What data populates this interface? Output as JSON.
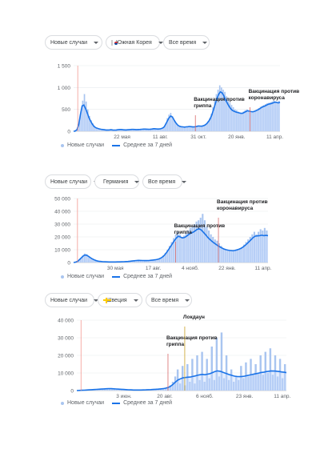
{
  "charts": [
    {
      "country_label": "Южная Корея",
      "flag": "kr",
      "metric_label": "Новые случаи",
      "period_label": "Все время",
      "legend": {
        "daily": "Новые случаи",
        "avg": "Среднее за 7 дней"
      },
      "chart_data": {
        "type": "bar",
        "ylim": [
          0,
          1500
        ],
        "yticks": [
          "0",
          "500",
          "1 000",
          "1 500"
        ],
        "ytick_values": [
          0,
          500,
          1000,
          1500
        ],
        "xticks": [
          "22 мая",
          "11 авг.",
          "31 окт.",
          "20 янв.",
          "11 апр."
        ],
        "xtick_values": [
          0.235,
          0.42,
          0.605,
          0.79,
          0.975
        ],
        "daily_series": [
          {
            "name": "Новые случаи",
            "values": [
              0,
              10,
              60,
              200,
              450,
              700,
              850,
              680,
              500,
              350,
              250,
              180,
              120,
              90,
              70,
              60,
              50,
              40,
              35,
              30,
              30,
              35,
              40,
              30,
              25,
              30,
              40,
              50,
              45,
              35,
              30,
              30,
              35,
              40,
              50,
              45,
              40,
              35,
              40,
              45,
              50,
              60,
              55,
              50,
              45,
              50,
              60,
              70,
              60,
              50,
              55,
              60,
              80,
              100,
              180,
              300,
              380,
              420,
              350,
              250,
              180,
              130,
              110,
              100,
              95,
              90,
              100,
              110,
              120,
              100,
              90,
              100,
              110,
              130,
              120,
              110,
              130,
              150,
              180,
              230,
              300,
              400,
              550,
              700,
              850,
              950,
              1050,
              1000,
              950,
              900,
              800,
              750,
              650,
              600,
              550,
              500,
              480,
              450,
              430,
              420,
              450,
              480,
              500,
              470,
              450,
              440,
              460,
              480,
              500,
              530,
              560,
              580,
              600,
              620,
              640,
              650,
              660,
              680,
              700,
              680,
              660,
              700
            ]
          }
        ],
        "avg_series": [
          {
            "name": "Среднее за 7 дней",
            "values": [
              0,
              5,
              40,
              150,
              380,
              580,
              600,
              520,
              420,
              310,
              230,
              160,
              110,
              80,
              65,
              55,
              45,
              40,
              35,
              30,
              30,
              32,
              34,
              30,
              28,
              30,
              35,
              40,
              40,
              35,
              32,
              32,
              34,
              38,
              42,
              42,
              40,
              38,
              40,
              42,
              45,
              50,
              50,
              48,
              46,
              48,
              52,
              58,
              56,
              52,
              52,
              56,
              70,
              95,
              160,
              240,
              310,
              350,
              320,
              250,
              190,
              140,
              115,
              105,
              100,
              95,
              100,
              105,
              110,
              105,
              98,
              102,
              108,
              120,
              118,
              115,
              125,
              140,
              170,
              215,
              280,
              370,
              490,
              620,
              740,
              840,
              900,
              880,
              820,
              720,
              650,
              580,
              520,
              480,
              460,
              440,
              430,
              420,
              410,
              410,
              430,
              450,
              470,
              460,
              450,
              445,
              455,
              470,
              490,
              510,
              540,
              560,
              575,
              595,
              615,
              625,
              635,
              650,
              665,
              660,
              650,
              660
            ]
          }
        ],
        "annotations": [
          {
            "label": "Вакцинация против гриппа",
            "x_frac": 0.59
          },
          {
            "label": "Вакцинация против коронавируса",
            "x_frac": 0.855
          }
        ],
        "start_marker_frac": 0.02
      }
    },
    {
      "country_label": "Германия",
      "flag": "de",
      "metric_label": "Новые случаи",
      "period_label": "Все время",
      "legend": {
        "daily": "Новые случаи",
        "avg": "Среднее за 7 дней"
      },
      "chart_data": {
        "type": "bar",
        "ylim": [
          0,
          50000
        ],
        "yticks": [
          "0",
          "10 000",
          "20 000",
          "30 000",
          "40 000",
          "50 000"
        ],
        "ytick_values": [
          0,
          10000,
          20000,
          30000,
          40000,
          50000
        ],
        "xticks": [
          "30 мая",
          "17 авг.",
          "4 нояб.",
          "22 янв.",
          "11 апр."
        ],
        "xtick_values": [
          0.215,
          0.41,
          0.6,
          0.79,
          0.975
        ],
        "daily_series": [
          {
            "name": "Новые случаи",
            "values": [
              0,
              500,
              1500,
              3500,
              5500,
              7000,
              6500,
              5000,
              3500,
              2500,
              1800,
              1200,
              900,
              700,
              600,
              500,
              450,
              400,
              400,
              420,
              450,
              500,
              550,
              600,
              700,
              800,
              900,
              1100,
              1300,
              1500,
              1700,
              1800,
              1700,
              1600,
              1500,
              1500,
              1600,
              1800,
              2000,
              2200,
              2500,
              3000,
              4000,
              5500,
              7500,
              10000,
              13000,
              16000,
              19000,
              22000,
              24000,
              22000,
              20000,
              21000,
              23000,
              25000,
              27000,
              28000,
              30000,
              32000,
              33000,
              35000,
              38000,
              33000,
              28000,
              25000,
              22000,
              20000,
              18000,
              17000,
              15000,
              13000,
              11000,
              10000,
              9500,
              9000,
              8500,
              9000,
              9500,
              10000,
              11000,
              12000,
              14000,
              16000,
              18000,
              20000,
              22000,
              24000,
              22000,
              24000,
              26000,
              25000,
              27000,
              25000
            ]
          }
        ],
        "avg_series": [
          {
            "name": "Среднее за 7 дней",
            "values": [
              0,
              300,
              1000,
              2500,
              4200,
              5600,
              5800,
              5000,
              3800,
              2800,
              2000,
              1400,
              1000,
              800,
              650,
              550,
              480,
              430,
              410,
              420,
              440,
              480,
              520,
              580,
              650,
              740,
              840,
              1000,
              1180,
              1380,
              1560,
              1680,
              1650,
              1580,
              1520,
              1510,
              1580,
              1750,
              1950,
              2150,
              2450,
              2900,
              3700,
              5000,
              6800,
              9000,
              11500,
              14000,
              16500,
              18800,
              20500,
              20000,
              19200,
              19500,
              20500,
              21800,
              22800,
              23500,
              24500,
              25800,
              26300,
              25500,
              23800,
              22000,
              20000,
              18300,
              16800,
              15500,
              14300,
              13200,
              12200,
              11300,
              10500,
              10000,
              9600,
              9300,
              9200,
              9400,
              9800,
              10300,
              11000,
              12000,
              13300,
              14800,
              16400,
              18000,
              19600,
              20600,
              20800,
              21000,
              21300,
              21000,
              21200,
              21000
            ]
          }
        ],
        "annotations": [
          {
            "label": "Вакцинация против гриппа",
            "x_frac": 0.525
          },
          {
            "label": "Вакцинация против коронавируса",
            "x_frac": 0.745
          }
        ],
        "start_marker_frac": 0.02
      }
    },
    {
      "country_label": "Швеция",
      "flag": "se",
      "metric_label": "Новые случаи",
      "period_label": "Все время",
      "legend": {
        "daily": "Новые случаи",
        "avg": "Среднее за 7 дней"
      },
      "chart_data": {
        "type": "bar",
        "ylim": [
          0,
          40000
        ],
        "yticks": [
          "0",
          "10 000",
          "20 000",
          "30 000",
          "40 000"
        ],
        "ytick_values": [
          0,
          10000,
          20000,
          30000,
          40000
        ],
        "xticks": [
          "3 июн.",
          "20 авг.",
          "6 нояб.",
          "23 янв.",
          "11 апр."
        ],
        "xtick_values": [
          0.225,
          0.42,
          0.61,
          0.8,
          0.98
        ],
        "daily_series": [
          {
            "name": "Новые случаи",
            "values": [
              0,
              100,
              200,
              300,
              400,
              500,
              600,
              700,
              800,
              900,
              1000,
              1100,
              1200,
              1300,
              1200,
              1000,
              900,
              800,
              700,
              600,
              500,
              400,
              350,
              300,
              300,
              300,
              350,
              400,
              450,
              500,
              600,
              700,
              800,
              900,
              1000,
              1200,
              1500,
              2000,
              3000,
              5000,
              8000,
              12000,
              4000,
              14000,
              3000,
              15000,
              5000,
              18000,
              4000,
              20000,
              6000,
              22000,
              5000,
              18000,
              7000,
              25000,
              6000,
              30000,
              8000,
              33000,
              7000,
              20000,
              6000,
              12000,
              5000,
              8000,
              6000,
              14000,
              7000,
              16000,
              8000,
              18000,
              9000,
              15000,
              10000,
              20000,
              9000,
              22000,
              10000,
              24000,
              9000,
              20000,
              8000,
              18000,
              7000,
              15000
            ]
          }
        ],
        "avg_series": [
          {
            "name": "Среднее за 7 дней",
            "values": [
              0,
              100,
              180,
              250,
              330,
              420,
              510,
              600,
              690,
              780,
              870,
              960,
              1040,
              1100,
              1080,
              980,
              890,
              800,
              710,
              620,
              530,
              450,
              390,
              340,
              320,
              310,
              330,
              370,
              420,
              480,
              560,
              650,
              740,
              840,
              950,
              1100,
              1350,
              1750,
              2400,
              3500,
              4800,
              6000,
              6700,
              7200,
              7400,
              7600,
              7700,
              8000,
              8300,
              8700,
              9000,
              9200,
              9000,
              9300,
              9600,
              10200,
              10800,
              11200,
              11000,
              10500,
              10000,
              9500,
              9000,
              8600,
              8200,
              8000,
              7900,
              8000,
              8200,
              8500,
              8800,
              9100,
              9400,
              9700,
              10000,
              10300,
              10500,
              10800,
              11000,
              11200,
              11100,
              11000,
              10800,
              10600,
              10400,
              10200
            ]
          }
        ],
        "annotations": [
          {
            "label": "Вакцинация против гриппа",
            "x_frac": 0.435
          },
          {
            "label": "Локдаун",
            "x_frac": 0.515
          }
        ],
        "start_marker_frac": 0.02
      }
    }
  ]
}
